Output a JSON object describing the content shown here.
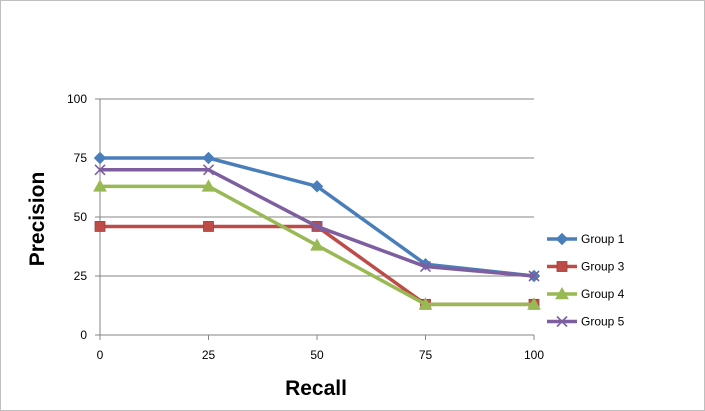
{
  "chart_data": {
    "type": "line",
    "x": [
      0,
      25,
      50,
      75,
      100
    ],
    "series": [
      {
        "name": "Group 1",
        "values": [
          75,
          75,
          63,
          30,
          25
        ],
        "color": "#4a7ebb",
        "marker": "diamond"
      },
      {
        "name": "Group 3",
        "values": [
          46,
          46,
          46,
          13,
          13
        ],
        "color": "#be4b48",
        "marker": "square"
      },
      {
        "name": "Group 4",
        "values": [
          63,
          63,
          38,
          13,
          13
        ],
        "color": "#98b954",
        "marker": "triangle"
      },
      {
        "name": "Group 5",
        "values": [
          70,
          70,
          46,
          29,
          25
        ],
        "color": "#7d5fa0",
        "marker": "x"
      }
    ],
    "xlabel": "Recall",
    "ylabel": "Precision",
    "xticks": [
      "0",
      "25",
      "50",
      "75",
      "100"
    ],
    "yticks": [
      "0",
      "25",
      "50",
      "75",
      "100"
    ],
    "xlim": [
      0,
      100
    ],
    "ylim": [
      0,
      100
    ],
    "grid": "horizontal",
    "legend_position": "right"
  }
}
